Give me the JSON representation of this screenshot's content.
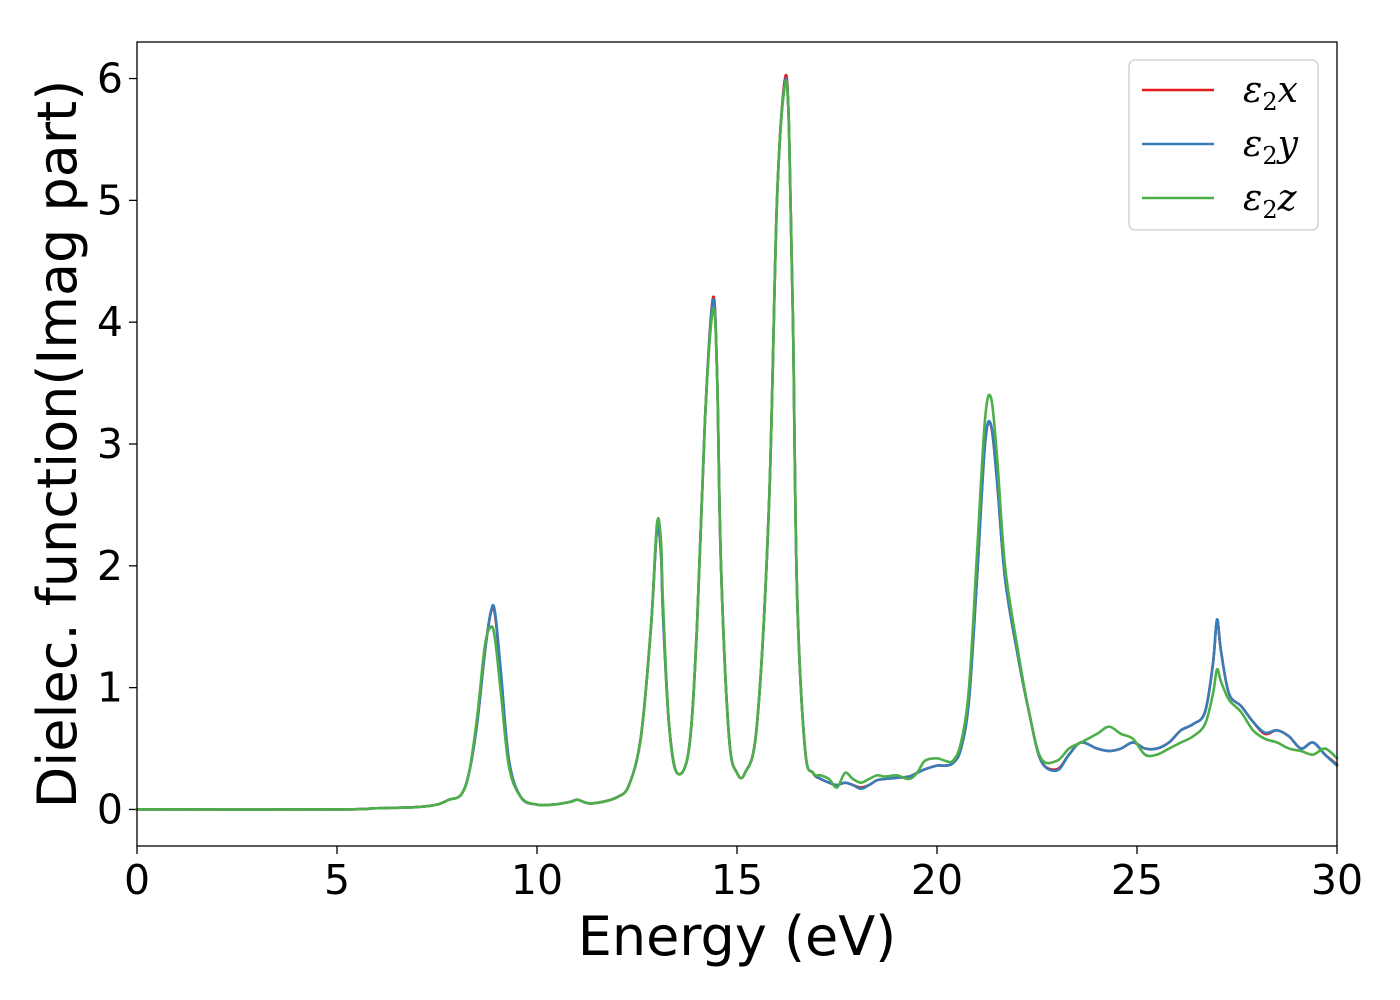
{
  "chart_data": {
    "type": "line",
    "title": "",
    "xlabel": "Energy (eV)",
    "ylabel": "Dielec. function(Imag part)",
    "xlim": [
      0,
      30
    ],
    "ylim": [
      -0.3,
      6.3
    ],
    "xticks": [
      0,
      5,
      10,
      15,
      20,
      25,
      30
    ],
    "yticks": [
      0,
      1,
      2,
      3,
      4,
      5,
      6
    ],
    "grid": false,
    "legend_position": "top-right",
    "series": [
      {
        "name": "ε2x",
        "legend_symbol": "ε",
        "legend_sub": "2",
        "legend_var": "x",
        "color": "#e41a1c",
        "x": [
          0,
          5,
          6,
          7,
          7.5,
          7.8,
          8.1,
          8.3,
          8.5,
          8.7,
          8.85,
          8.95,
          9.1,
          9.3,
          9.6,
          10,
          10.4,
          10.8,
          11.0,
          11.1,
          11.3,
          11.6,
          12,
          12.3,
          12.6,
          12.85,
          13.0,
          13.1,
          13.15,
          13.3,
          13.5,
          13.8,
          14.0,
          14.2,
          14.4,
          14.5,
          14.6,
          14.8,
          15.0,
          15.2,
          15.5,
          15.8,
          16.0,
          16.2,
          16.3,
          16.4,
          16.5,
          16.7,
          16.9,
          17.1,
          17.3,
          17.5,
          17.7,
          17.9,
          18.1,
          18.3,
          18.5,
          18.7,
          19.0,
          19.3,
          19.5,
          19.7,
          20.0,
          20.2,
          20.4,
          20.6,
          20.8,
          21.0,
          21.2,
          21.35,
          21.5,
          21.7,
          22.0,
          22.3,
          22.6,
          23.0,
          23.3,
          23.6,
          24.0,
          24.3,
          24.6,
          24.9,
          25.2,
          25.5,
          25.8,
          26.1,
          26.4,
          26.7,
          26.9,
          27.0,
          27.1,
          27.3,
          27.6,
          27.9,
          28.2,
          28.5,
          28.8,
          29.1,
          29.4,
          29.7,
          30
        ],
        "y": [
          0.0,
          0.0,
          0.01,
          0.02,
          0.04,
          0.08,
          0.12,
          0.3,
          0.7,
          1.3,
          1.62,
          1.6,
          1.1,
          0.4,
          0.1,
          0.04,
          0.04,
          0.06,
          0.08,
          0.07,
          0.05,
          0.06,
          0.1,
          0.2,
          0.6,
          1.5,
          2.3,
          2.1,
          1.6,
          0.7,
          0.3,
          0.5,
          1.5,
          3.2,
          4.2,
          3.6,
          2.0,
          0.6,
          0.3,
          0.3,
          0.7,
          2.5,
          5.0,
          6.0,
          5.6,
          4.0,
          1.8,
          0.5,
          0.3,
          0.25,
          0.22,
          0.2,
          0.22,
          0.2,
          0.18,
          0.2,
          0.24,
          0.25,
          0.26,
          0.27,
          0.3,
          0.33,
          0.36,
          0.36,
          0.38,
          0.5,
          0.9,
          1.9,
          3.0,
          3.15,
          2.7,
          1.9,
          1.3,
          0.8,
          0.4,
          0.33,
          0.45,
          0.55,
          0.5,
          0.48,
          0.5,
          0.55,
          0.5,
          0.5,
          0.55,
          0.65,
          0.7,
          0.8,
          1.2,
          1.55,
          1.3,
          0.95,
          0.85,
          0.72,
          0.62,
          0.65,
          0.6,
          0.5,
          0.55,
          0.45,
          0.37
        ]
      },
      {
        "name": "ε2y",
        "legend_symbol": "ε",
        "legend_sub": "2",
        "legend_var": "y",
        "color": "#377eb8",
        "x": [
          0,
          5,
          6,
          7,
          7.5,
          7.8,
          8.1,
          8.3,
          8.5,
          8.7,
          8.85,
          8.95,
          9.1,
          9.3,
          9.6,
          10,
          10.4,
          10.8,
          11.0,
          11.1,
          11.3,
          11.6,
          12,
          12.3,
          12.6,
          12.85,
          13.0,
          13.1,
          13.15,
          13.3,
          13.5,
          13.8,
          14.0,
          14.2,
          14.4,
          14.5,
          14.6,
          14.8,
          15.0,
          15.2,
          15.5,
          15.8,
          16.0,
          16.2,
          16.3,
          16.4,
          16.5,
          16.7,
          16.9,
          17.1,
          17.3,
          17.5,
          17.7,
          17.9,
          18.1,
          18.3,
          18.5,
          18.7,
          19.0,
          19.3,
          19.5,
          19.7,
          20.0,
          20.2,
          20.4,
          20.6,
          20.8,
          21.0,
          21.2,
          21.35,
          21.5,
          21.7,
          22.0,
          22.3,
          22.6,
          23.0,
          23.3,
          23.6,
          24.0,
          24.3,
          24.6,
          24.9,
          25.2,
          25.5,
          25.8,
          26.1,
          26.4,
          26.7,
          26.9,
          27.0,
          27.1,
          27.3,
          27.6,
          27.9,
          28.2,
          28.5,
          28.8,
          29.1,
          29.4,
          29.7,
          30
        ],
        "y": [
          0.0,
          0.0,
          0.01,
          0.02,
          0.04,
          0.08,
          0.12,
          0.3,
          0.7,
          1.3,
          1.63,
          1.62,
          1.12,
          0.4,
          0.1,
          0.04,
          0.04,
          0.06,
          0.08,
          0.07,
          0.05,
          0.06,
          0.1,
          0.2,
          0.6,
          1.5,
          2.3,
          2.1,
          1.6,
          0.7,
          0.3,
          0.5,
          1.5,
          3.2,
          4.18,
          3.6,
          2.0,
          0.6,
          0.3,
          0.3,
          0.7,
          2.5,
          5.0,
          5.97,
          5.6,
          4.0,
          1.8,
          0.5,
          0.3,
          0.25,
          0.22,
          0.2,
          0.22,
          0.2,
          0.17,
          0.2,
          0.24,
          0.25,
          0.26,
          0.27,
          0.3,
          0.33,
          0.36,
          0.36,
          0.38,
          0.5,
          0.9,
          1.9,
          3.0,
          3.16,
          2.7,
          1.9,
          1.3,
          0.8,
          0.4,
          0.32,
          0.45,
          0.55,
          0.5,
          0.48,
          0.5,
          0.55,
          0.5,
          0.5,
          0.55,
          0.65,
          0.7,
          0.8,
          1.2,
          1.56,
          1.3,
          0.95,
          0.85,
          0.72,
          0.63,
          0.65,
          0.6,
          0.5,
          0.55,
          0.45,
          0.36
        ]
      },
      {
        "name": "ε2z",
        "legend_symbol": "ε",
        "legend_sub": "2",
        "legend_var": "z",
        "color": "#4daf4a",
        "x": [
          0,
          5,
          6,
          7,
          7.5,
          7.8,
          8.1,
          8.3,
          8.5,
          8.7,
          8.85,
          8.95,
          9.1,
          9.3,
          9.6,
          10,
          10.4,
          10.8,
          11.0,
          11.1,
          11.3,
          11.6,
          12,
          12.3,
          12.6,
          12.85,
          13.0,
          13.1,
          13.15,
          13.3,
          13.5,
          13.8,
          14.0,
          14.2,
          14.4,
          14.5,
          14.6,
          14.8,
          15.0,
          15.2,
          15.5,
          15.8,
          16.0,
          16.2,
          16.3,
          16.4,
          16.5,
          16.7,
          16.9,
          17.1,
          17.3,
          17.5,
          17.7,
          17.9,
          18.1,
          18.3,
          18.5,
          18.7,
          19.0,
          19.3,
          19.5,
          19.7,
          20.0,
          20.2,
          20.4,
          20.6,
          20.8,
          21.0,
          21.2,
          21.35,
          21.5,
          21.7,
          22.0,
          22.3,
          22.6,
          23.0,
          23.3,
          23.6,
          24.0,
          24.3,
          24.6,
          24.9,
          25.2,
          25.5,
          25.8,
          26.1,
          26.4,
          26.7,
          26.9,
          27.0,
          27.1,
          27.3,
          27.6,
          27.9,
          28.2,
          28.5,
          28.8,
          29.1,
          29.4,
          29.7,
          30
        ],
        "y": [
          0.0,
          0.0,
          0.01,
          0.02,
          0.04,
          0.08,
          0.12,
          0.3,
          0.75,
          1.35,
          1.5,
          1.4,
          0.95,
          0.35,
          0.1,
          0.04,
          0.04,
          0.06,
          0.08,
          0.07,
          0.05,
          0.06,
          0.1,
          0.2,
          0.6,
          1.5,
          2.35,
          2.2,
          1.7,
          0.7,
          0.3,
          0.5,
          1.5,
          3.2,
          4.1,
          3.6,
          2.0,
          0.6,
          0.3,
          0.3,
          0.7,
          2.5,
          5.0,
          5.95,
          5.6,
          4.0,
          1.8,
          0.5,
          0.3,
          0.28,
          0.25,
          0.18,
          0.3,
          0.25,
          0.22,
          0.25,
          0.28,
          0.27,
          0.28,
          0.25,
          0.3,
          0.4,
          0.42,
          0.4,
          0.4,
          0.55,
          1.0,
          2.1,
          3.2,
          3.38,
          2.9,
          2.0,
          1.35,
          0.8,
          0.42,
          0.4,
          0.5,
          0.55,
          0.62,
          0.68,
          0.62,
          0.58,
          0.45,
          0.45,
          0.5,
          0.55,
          0.6,
          0.7,
          0.95,
          1.15,
          1.05,
          0.9,
          0.8,
          0.65,
          0.58,
          0.55,
          0.5,
          0.48,
          0.45,
          0.5,
          0.42
        ]
      }
    ]
  }
}
